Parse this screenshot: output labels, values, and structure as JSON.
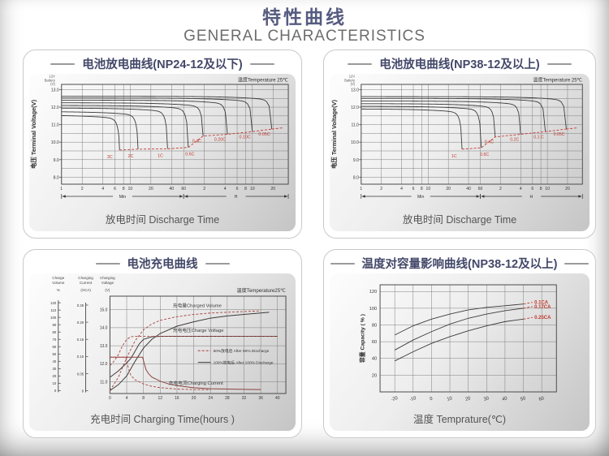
{
  "page": {
    "title": "特性曲线",
    "subtitle": "GENERAL CHARACTERISTICS"
  },
  "chart_data": [
    {
      "kind": "discharge",
      "type": "line",
      "title": "电池放电曲线(NP24-12及以下)",
      "bottom_label": "放电时间 Discharge Time",
      "corner_note": "温度Temperature 25℃",
      "accent": "#c03a32",
      "line_color": "#3a3a3a",
      "y_axis": {
        "label": "电压 Terminal Voltage(V)",
        "unit_note": [
          "12V",
          "Battery",
          "(V)"
        ],
        "ticks": [
          "13.0",
          "12.0",
          "11.0",
          "10.0",
          "9.0",
          "8.0"
        ],
        "min": 7.6,
        "max": 13.3,
        "grid_step": 0.5
      },
      "x_axis": {
        "scale": "log-minutes",
        "min": 1,
        "max": 2000,
        "ticks": [
          {
            "t": 1,
            "label": "1"
          },
          {
            "t": 2,
            "label": "2"
          },
          {
            "t": 4,
            "label": "4"
          },
          {
            "t": 6,
            "label": "6"
          },
          {
            "t": 8,
            "label": "8"
          },
          {
            "t": 10,
            "label": "10"
          },
          {
            "t": 20,
            "label": "20"
          },
          {
            "t": 40,
            "label": "40"
          },
          {
            "t": 60,
            "label": "60"
          },
          {
            "t": 120,
            "label": "2"
          },
          {
            "t": 240,
            "label": "4"
          },
          {
            "t": 360,
            "label": "6"
          },
          {
            "t": 480,
            "label": "8"
          },
          {
            "t": 600,
            "label": "10"
          },
          {
            "t": 1200,
            "label": "20"
          }
        ],
        "ranges": [
          {
            "label": "Min",
            "from": 1,
            "to": 60
          },
          {
            "label": "H",
            "from": 60,
            "to": 2000
          }
        ]
      },
      "series": [
        {
          "name": "3C",
          "v0": 11.55,
          "t_end": 7,
          "v_end": 9.55,
          "ldx": -12,
          "ldy": 10
        },
        {
          "name": "2C",
          "v0": 11.75,
          "t_end": 13,
          "v_end": 9.6,
          "ldx": -9,
          "ldy": 10
        },
        {
          "name": "1C",
          "v0": 11.95,
          "t_end": 35,
          "v_end": 9.62,
          "ldx": -9,
          "ldy": 10
        },
        {
          "name": "0.6C",
          "v0": 12.1,
          "t_end": 70,
          "v_end": 9.7,
          "ldx": 2,
          "ldy": 10
        },
        {
          "name": "0.4C",
          "v0": 12.25,
          "t_end": 115,
          "v_end": 10.35,
          "ldx": -2,
          "ldy": 8,
          "lan": "end"
        },
        {
          "name": "0.20C",
          "v0": 12.4,
          "t_end": 260,
          "v_end": 10.45,
          "ldx": -2,
          "ldy": 8,
          "lan": "end"
        },
        {
          "name": "0.10C",
          "v0": 12.52,
          "t_end": 600,
          "v_end": 10.6,
          "ldx": -2,
          "ldy": 8,
          "lan": "end"
        },
        {
          "name": "0.05C",
          "v0": 12.62,
          "t_end": 1150,
          "v_end": 10.75,
          "ldx": -2,
          "ldy": 8,
          "lan": "end"
        }
      ]
    },
    {
      "kind": "discharge",
      "type": "line",
      "title": "电池放电曲线(NP38-12及以上)",
      "bottom_label": "放电时间 Discharge Time",
      "corner_note": "温度Temperature 25℃",
      "accent": "#c03a32",
      "line_color": "#3a3a3a",
      "y_axis": {
        "label": "电压 Terminal Voltage(V)",
        "unit_note": [
          "12V",
          "Battery",
          "(V)"
        ],
        "ticks": [
          "13.0",
          "12.0",
          "11.0",
          "10.0",
          "9.0",
          "8.0"
        ],
        "min": 7.6,
        "max": 13.3,
        "grid_step": 0.5
      },
      "x_axis": {
        "scale": "log-minutes",
        "min": 1,
        "max": 2000,
        "ticks": [
          {
            "t": 1,
            "label": "1"
          },
          {
            "t": 2,
            "label": "2"
          },
          {
            "t": 4,
            "label": "4"
          },
          {
            "t": 6,
            "label": "6"
          },
          {
            "t": 8,
            "label": "8"
          },
          {
            "t": 10,
            "label": "10"
          },
          {
            "t": 20,
            "label": "20"
          },
          {
            "t": 40,
            "label": "40"
          },
          {
            "t": 60,
            "label": "60"
          },
          {
            "t": 120,
            "label": "2"
          },
          {
            "t": 240,
            "label": "4"
          },
          {
            "t": 360,
            "label": "6"
          },
          {
            "t": 480,
            "label": "8"
          },
          {
            "t": 600,
            "label": "10"
          },
          {
            "t": 1200,
            "label": "20"
          }
        ],
        "ranges": [
          {
            "label": "Min",
            "from": 1,
            "to": 60
          },
          {
            "label": "H",
            "from": 60,
            "to": 2000
          }
        ]
      },
      "series": [
        {
          "name": "1C",
          "v0": 11.9,
          "t_end": 32,
          "v_end": 9.6,
          "ldx": -10,
          "ldy": 10
        },
        {
          "name": "0.6C",
          "v0": 12.05,
          "t_end": 62,
          "v_end": 9.68,
          "ldx": 4,
          "ldy": 10
        },
        {
          "name": "0.4C",
          "v0": 12.2,
          "t_end": 100,
          "v_end": 10.3,
          "ldx": -2,
          "ldy": 8,
          "lan": "end"
        },
        {
          "name": "0.2C",
          "v0": 12.35,
          "t_end": 240,
          "v_end": 10.45,
          "ldx": -2,
          "ldy": 8,
          "lan": "end"
        },
        {
          "name": "0.1 C",
          "v0": 12.5,
          "t_end": 560,
          "v_end": 10.6,
          "ldx": -2,
          "ldy": 8,
          "lan": "end"
        },
        {
          "name": "0.05C",
          "v0": 12.6,
          "t_end": 1150,
          "v_end": 10.75,
          "ldx": -2,
          "ldy": 8,
          "lan": "end"
        }
      ]
    },
    {
      "kind": "charge",
      "type": "line",
      "title": "电池充电曲线",
      "bottom_label": "充电时间 Charging Time(hours )",
      "corner_note": "温度Temperature25℃",
      "scales": [
        {
          "id": "pct",
          "header": [
            "Charge",
            "Volume"
          ],
          "unit": "%",
          "ticks": [
            "120",
            "110",
            "100",
            "90",
            "80",
            "70",
            "60",
            "50",
            "40",
            "30",
            "20",
            "10",
            "0"
          ],
          "min": -4,
          "max": 129
        },
        {
          "id": "xca",
          "header": [
            "Charging",
            "Current"
          ],
          "unit": "(XCA)",
          "ticks": [
            "0.25",
            "0.20",
            "0.15",
            "0.10",
            "0.05",
            "0"
          ],
          "min": -0.008,
          "max": 0.276
        },
        {
          "id": "v",
          "header": [
            "Charging",
            "Voltage"
          ],
          "unit": "(V)",
          "ticks": [
            "15.0",
            "14.0",
            "13.0",
            "12.0",
            "11.0"
          ],
          "min": 10.35,
          "max": 15.75
        }
      ],
      "x_axis": {
        "min": 0,
        "max": 42,
        "ticks": [
          0,
          4,
          8,
          12,
          16,
          20,
          24,
          28,
          32,
          36,
          40
        ]
      },
      "series": [
        {
          "name": "charged-volume-100",
          "scale": "pct",
          "style": "solid",
          "color": "#403a38",
          "points": [
            [
              0,
              0
            ],
            [
              2,
              8
            ],
            [
              4,
              20
            ],
            [
              6,
              40
            ],
            [
              8,
              58
            ],
            [
              10,
              70
            ],
            [
              12,
              78
            ],
            [
              16,
              88
            ],
            [
              20,
              94
            ],
            [
              24,
              99
            ],
            [
              28,
              102
            ],
            [
              32,
              104
            ],
            [
              36,
              106
            ],
            [
              38,
              107
            ]
          ]
        },
        {
          "name": "charge-voltage-100",
          "scale": "v",
          "style": "solid",
          "color": "#403a38",
          "points": [
            [
              0,
              11.25
            ],
            [
              2,
              11.6
            ],
            [
              4,
              12.05
            ],
            [
              5,
              12.3
            ],
            [
              6,
              12.7
            ],
            [
              7,
              13.1
            ],
            [
              8,
              13.35
            ],
            [
              10,
              13.5
            ],
            [
              12,
              13.52
            ],
            [
              40,
              13.52
            ]
          ]
        },
        {
          "name": "charging-current-100",
          "scale": "xca",
          "style": "solid",
          "color": "#8a4540",
          "points": [
            [
              0,
              0.098
            ],
            [
              7.8,
              0.098
            ],
            [
              8,
              0.088
            ],
            [
              8.6,
              0.062
            ],
            [
              9.2,
              0.05
            ],
            [
              10,
              0.04
            ],
            [
              12,
              0.028
            ],
            [
              14,
              0.02
            ],
            [
              16,
              0.015
            ],
            [
              20,
              0.009
            ],
            [
              24,
              0.006
            ],
            [
              28,
              0.005
            ],
            [
              32,
              0.004
            ],
            [
              36,
              0.0035
            ]
          ]
        },
        {
          "name": "charged-volume-50",
          "scale": "pct",
          "style": "dashed",
          "color": "#a8433d",
          "points": [
            [
              0,
              0
            ],
            [
              2,
              18
            ],
            [
              4,
              45
            ],
            [
              6,
              68
            ],
            [
              8,
              83
            ],
            [
              10,
              91
            ],
            [
              12,
              96
            ],
            [
              16,
              101
            ],
            [
              20,
              104
            ],
            [
              24,
              106
            ],
            [
              28,
              107
            ],
            [
              32,
              108
            ],
            [
              36,
              109
            ]
          ]
        },
        {
          "name": "charge-voltage-50",
          "scale": "v",
          "style": "dashed",
          "color": "#a8433d",
          "points": [
            [
              0,
              11.9
            ],
            [
              1,
              12.15
            ],
            [
              2,
              12.5
            ],
            [
              3,
              13.0
            ],
            [
              4,
              13.35
            ],
            [
              5,
              13.5
            ],
            [
              6,
              13.52
            ],
            [
              40,
              13.52
            ]
          ]
        },
        {
          "name": "charging-current-50",
          "scale": "xca",
          "style": "dashed",
          "color": "#a8433d",
          "points": [
            [
              0,
              0.098
            ],
            [
              3.8,
              0.098
            ],
            [
              4,
              0.085
            ],
            [
              4.6,
              0.058
            ],
            [
              5,
              0.045
            ],
            [
              6,
              0.032
            ],
            [
              8,
              0.02
            ],
            [
              10,
              0.013
            ],
            [
              12,
              0.009
            ],
            [
              16,
              0.005
            ],
            [
              20,
              0.0035
            ],
            [
              24,
              0.003
            ]
          ]
        }
      ],
      "labels": [
        {
          "text": "充电量Charged Volume",
          "x": 15,
          "scale": "pct",
          "y": 114,
          "color": "#3a3a3a"
        },
        {
          "text": "充电电压Charge Voltage",
          "x": 15,
          "scale": "v",
          "y": 13.78,
          "color": "#3a3a3a"
        },
        {
          "text": "充电电流Charging Current",
          "x": 14,
          "scale": "xca",
          "y": 0.018,
          "color": "#3a3a3a"
        }
      ],
      "legend": [
        {
          "text": "50%放电后 After 50% Discharge",
          "style": "dashed",
          "color": "#a8433d",
          "fx": 0.5,
          "fy": 0.56
        },
        {
          "text": "100%放电后 After 100% Discharge",
          "style": "solid",
          "color": "#403a38",
          "fx": 0.5,
          "fy": 0.68
        }
      ]
    },
    {
      "kind": "capacity",
      "type": "line",
      "title": "温度对容量影响曲线(NP38-12及以上)",
      "bottom_label": "温度 Temprature(℃)",
      "label_color": "#c0392b",
      "line_color": "#3a3a3a",
      "y_axis": {
        "label": "容量 Capacity ( % )",
        "min": 0,
        "max": 128,
        "ticks": [
          120,
          100,
          80,
          60,
          40,
          20
        ]
      },
      "x_axis": {
        "min": -28,
        "max": 68,
        "ticks": [
          -20,
          -10,
          0,
          10,
          20,
          30,
          40,
          50,
          60
        ]
      },
      "series": [
        {
          "name": "0.1CA",
          "points": [
            [
              -20,
              68
            ],
            [
              -10,
              79
            ],
            [
              0,
              87
            ],
            [
              10,
              93
            ],
            [
              20,
              98
            ],
            [
              30,
              101
            ],
            [
              40,
              103
            ],
            [
              50,
              105
            ]
          ]
        },
        {
          "name": "0.17CA",
          "points": [
            [
              -20,
              50
            ],
            [
              -10,
              62
            ],
            [
              0,
              72
            ],
            [
              10,
              81
            ],
            [
              20,
              88
            ],
            [
              30,
              93
            ],
            [
              40,
              97
            ],
            [
              50,
              100
            ]
          ]
        },
        {
          "name": "0.25CA",
          "points": [
            [
              -20,
              37
            ],
            [
              -10,
              48
            ],
            [
              0,
              58
            ],
            [
              10,
              66
            ],
            [
              20,
              73
            ],
            [
              30,
              79
            ],
            [
              40,
              84
            ],
            [
              50,
              87
            ]
          ]
        }
      ]
    }
  ]
}
